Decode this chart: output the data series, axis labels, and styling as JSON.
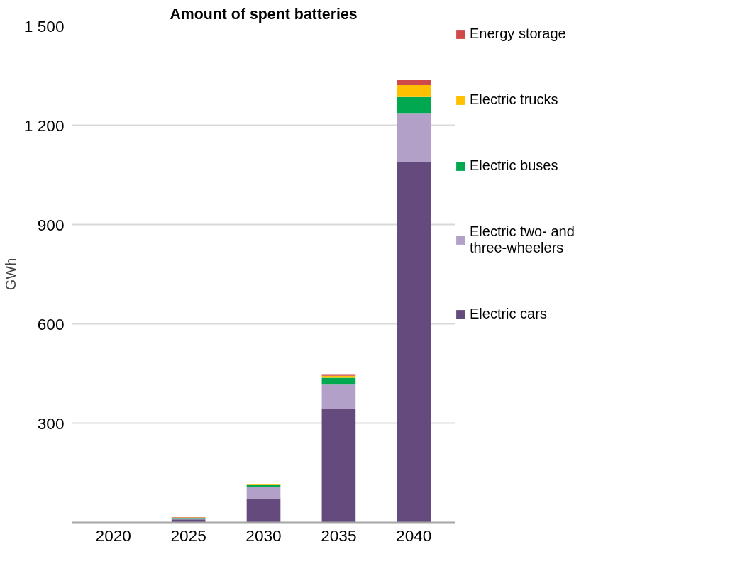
{
  "chart_data": {
    "type": "bar",
    "title": "Amount of spent batteries",
    "ylabel": "GWh",
    "stacked": true,
    "categories": [
      "2020",
      "2025",
      "2030",
      "2035",
      "2040"
    ],
    "series": [
      {
        "name": "Electric cars",
        "color": "#644a7d",
        "values": [
          0,
          9,
          73,
          343,
          1088
        ]
      },
      {
        "name": "Electric two- and three-wheelers",
        "color": "#b3a0c9",
        "values": [
          0,
          4,
          34,
          73,
          147
        ]
      },
      {
        "name": "Electric buses",
        "color": "#00a84f",
        "values": [
          0,
          1,
          6,
          21,
          50
        ]
      },
      {
        "name": "Electric trucks",
        "color": "#ffc000",
        "values": [
          0,
          1,
          2,
          6,
          36
        ]
      },
      {
        "name": "Energy storage",
        "color": "#d04a4a",
        "values": [
          0,
          1,
          1,
          5,
          15
        ]
      }
    ],
    "ylim": [
      0,
      1500
    ],
    "yticks": [
      {
        "value": 0,
        "label": null
      },
      300,
      600,
      900,
      {
        "value": 1200,
        "label": "1 200"
      },
      {
        "value": 1500,
        "label": "1 500"
      }
    ],
    "grid": "y",
    "legend": "right"
  }
}
